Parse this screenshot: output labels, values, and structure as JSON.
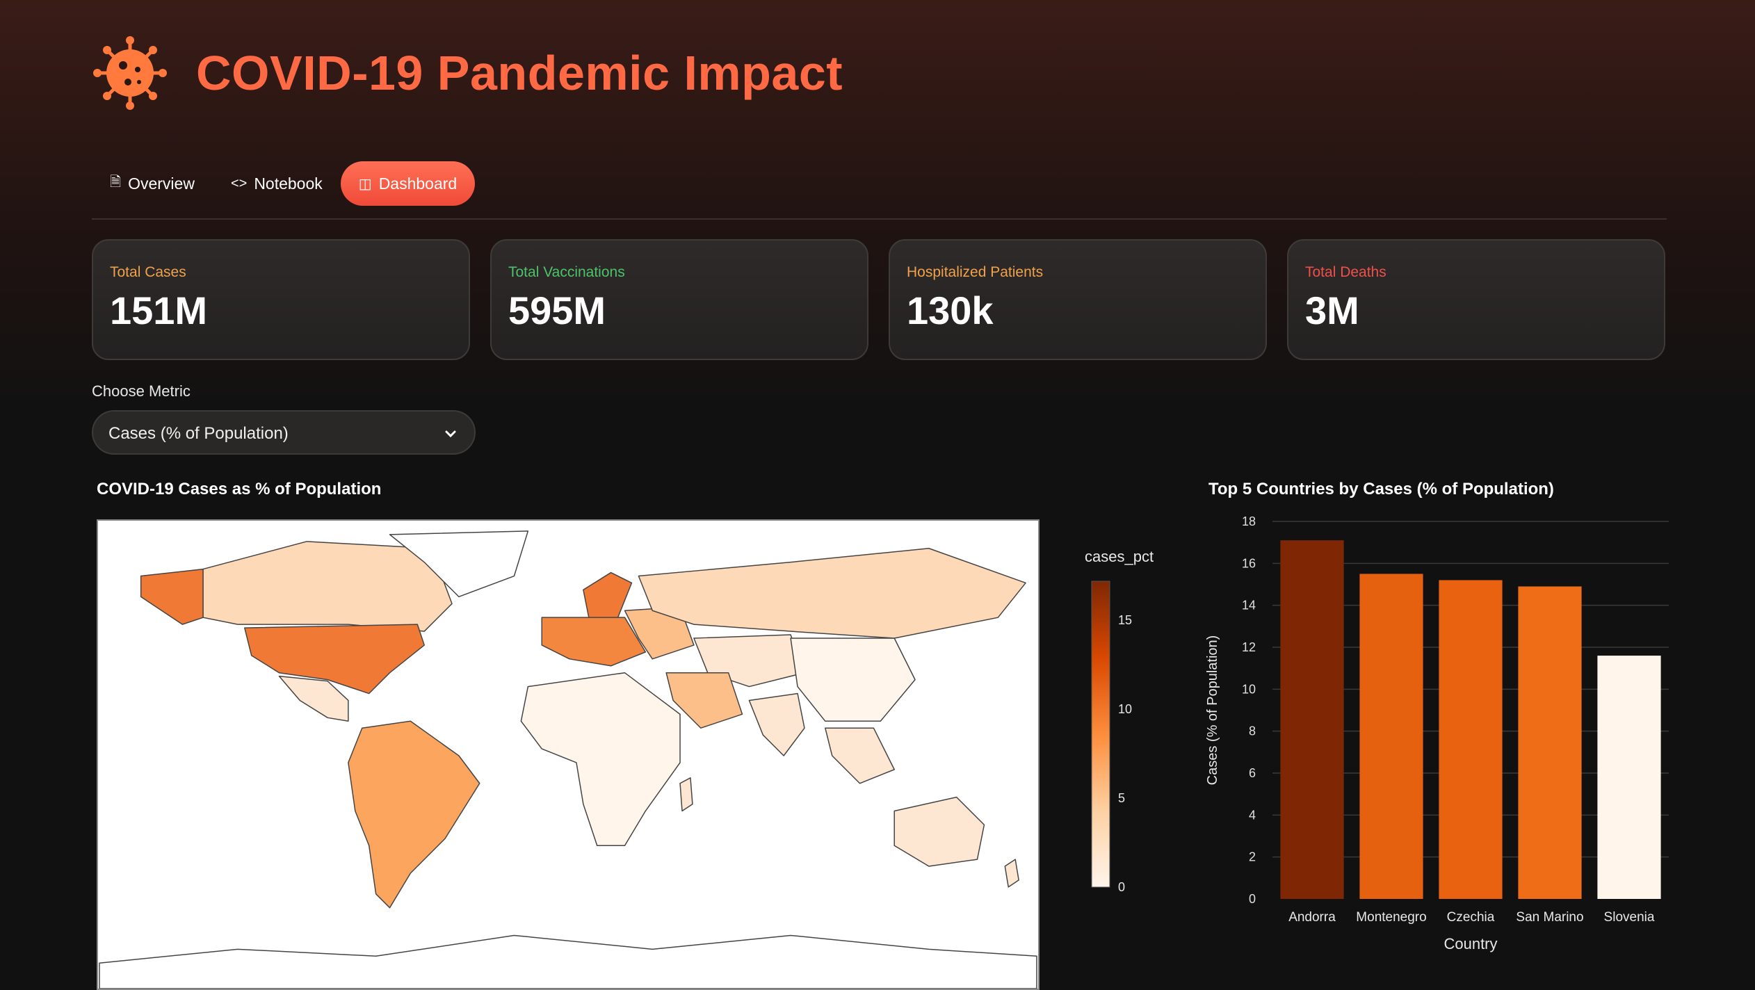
{
  "header": {
    "title": "COVID-19 Pandemic Impact",
    "logo_icon": "virus-icon"
  },
  "tabs": [
    {
      "label": "Overview",
      "icon": "document-icon",
      "active": false
    },
    {
      "label": "Notebook",
      "icon": "code-icon",
      "active": false
    },
    {
      "label": "Dashboard",
      "icon": "dashboard-icon",
      "active": true
    }
  ],
  "metrics": [
    {
      "label": "Total Cases",
      "value": "151M",
      "color": "#f0a24a"
    },
    {
      "label": "Total Vaccinations",
      "value": "595M",
      "color": "#4cc36a"
    },
    {
      "label": "Hospitalized Patients",
      "value": "130k",
      "color": "#f0a24a"
    },
    {
      "label": "Total Deaths",
      "value": "3M",
      "color": "#f0504a"
    }
  ],
  "selector": {
    "label": "Choose Metric",
    "value": "Cases (% of Population)"
  },
  "map": {
    "title": "COVID-19 Cases as % of Population",
    "colorbar": {
      "title": "cases_pct",
      "ticks": [
        "15",
        "10",
        "5",
        "0"
      ],
      "range": [
        0,
        17
      ]
    }
  },
  "chart_data": {
    "type": "bar",
    "title": "Top 5 Countries by Cases (% of Population)",
    "xlabel": "Country",
    "ylabel": "Cases (% of Population)",
    "categories": [
      "Andorra",
      "Montenegro",
      "Czechia",
      "San Marino",
      "Slovenia"
    ],
    "values": [
      17.1,
      15.5,
      15.2,
      14.9,
      11.6
    ],
    "colors": [
      "#7f2704",
      "#e5600f",
      "#e9620f",
      "#f06d17",
      "#fff5eb"
    ],
    "ylim": [
      0,
      18
    ],
    "yticks": [
      0,
      2,
      4,
      6,
      8,
      10,
      12,
      14,
      16,
      18
    ],
    "grid": true
  }
}
